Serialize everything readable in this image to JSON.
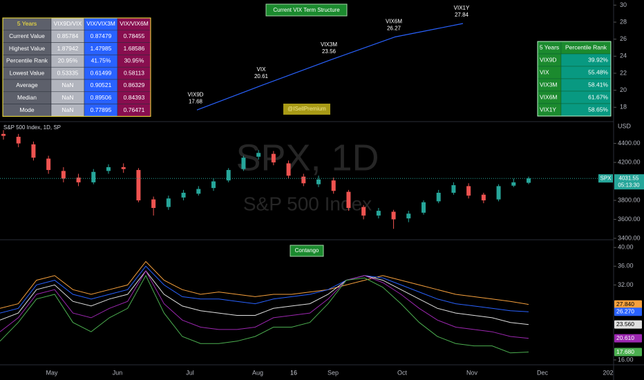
{
  "left_table": {
    "header": [
      "5 Years",
      "VIX9D/VIX",
      "VIX/VIX3M",
      "VIX/VIX6M"
    ],
    "rows": [
      [
        "Current Value",
        "0.85784",
        "0.87479",
        "0.78455"
      ],
      [
        "Highest Value",
        "1.87942",
        "1.47985",
        "1.68586"
      ],
      [
        "Percentile Rank",
        "20.95%",
        "41.75%",
        "30.95%"
      ],
      [
        "Lowest Value",
        "0.53335",
        "0.61499",
        "0.58113"
      ],
      [
        "Average",
        "NaN",
        "0.90521",
        "0.86329"
      ],
      [
        "Median",
        "NaN",
        "0.89506",
        "0.84393"
      ],
      [
        "Mode",
        "NaN",
        "0.77895",
        "0.76471"
      ]
    ]
  },
  "right_table": {
    "header": [
      "5 Years",
      "Percentile Rank"
    ],
    "rows": [
      [
        "VIX9D",
        "39.92%"
      ],
      [
        "VIX",
        "55.48%"
      ],
      [
        "VIX3M",
        "58.41%"
      ],
      [
        "VIX6M",
        "61.67%"
      ],
      [
        "VIX1Y",
        "58.65%"
      ]
    ]
  },
  "watermark_tag": "@ISellPremium",
  "time_axis": [
    "May",
    "Jun",
    "Jul",
    "Aug",
    "16",
    "Sep",
    "Oct",
    "Nov",
    "Dec",
    "202"
  ],
  "chart_data": [
    {
      "type": "line",
      "title": "Current VIX Term Structure",
      "categories": [
        "VIX9D",
        "VIX",
        "VIX3M",
        "VIX6M",
        "VIX1Y"
      ],
      "values": [
        17.68,
        20.61,
        23.56,
        26.27,
        27.84
      ],
      "color": "#2962ff",
      "ylim": [
        16.4,
        30.6
      ],
      "yticks": [
        18,
        20,
        22,
        24,
        26,
        28,
        30
      ]
    },
    {
      "type": "candlestick",
      "legend": "S&P 500 Index, 1D, SP",
      "watermark_symbol": "SPX, 1D",
      "watermark_name": "S&P 500 Index",
      "currency": "USD",
      "price_tag": "SPX",
      "countdown": "05:13:30",
      "up_color": "#26a69a",
      "down_color": "#ef5350",
      "ylim": [
        3385,
        4630
      ],
      "yticks": [
        {
          "value": 3400,
          "label": "3400.00"
        },
        {
          "value": 3600,
          "label": "3600.00"
        },
        {
          "value": 3800,
          "label": "3800.00"
        },
        {
          "value": 4200,
          "label": "4200.00"
        },
        {
          "value": 4400,
          "label": "4400.00"
        }
      ],
      "open": [
        4500,
        4470,
        4390,
        4240,
        4110,
        4040,
        3990,
        4110,
        4150,
        4120,
        3810,
        3730,
        3830,
        3870,
        3930,
        4010,
        4130,
        4260,
        4290,
        4190,
        4050,
        3970,
        4010,
        3890,
        3730,
        3640,
        3680,
        3610,
        3670,
        3790,
        3880,
        3950,
        3860,
        3810,
        3955,
        3985
      ],
      "high": [
        4540,
        4500,
        4420,
        4270,
        4150,
        4080,
        4130,
        4180,
        4190,
        4140,
        3840,
        3850,
        3910,
        3950,
        4030,
        4140,
        4270,
        4330,
        4320,
        4220,
        4080,
        4060,
        4040,
        3910,
        3750,
        3720,
        3700,
        3690,
        3800,
        3910,
        3990,
        3980,
        3880,
        3970,
        4030,
        4050
      ],
      "low": [
        4440,
        4360,
        4220,
        4080,
        3990,
        3950,
        3970,
        4080,
        4090,
        3780,
        3640,
        3700,
        3800,
        3850,
        3900,
        3990,
        4110,
        4230,
        4170,
        4030,
        3950,
        3940,
        3870,
        3690,
        3600,
        3610,
        3500,
        3570,
        3650,
        3770,
        3860,
        3820,
        3770,
        3790,
        3940,
        3970
      ],
      "close": [
        4480,
        4400,
        4250,
        4120,
        4030,
        3990,
        4100,
        4150,
        4130,
        3800,
        3720,
        3820,
        3880,
        3920,
        4000,
        4120,
        4250,
        4300,
        4200,
        4060,
        3980,
        4020,
        3900,
        3720,
        3640,
        3690,
        3600,
        3660,
        3780,
        3880,
        3960,
        3850,
        3800,
        3950,
        3990,
        4031.55
      ]
    },
    {
      "type": "line",
      "title": "Contango",
      "ylim": [
        15.4,
        41.5
      ],
      "yticks": [
        {
          "value": 16,
          "label": "16.00"
        },
        {
          "value": 32,
          "label": "32.00"
        },
        {
          "value": 36,
          "label": "36.00"
        },
        {
          "value": 40,
          "label": "40.00"
        }
      ],
      "series": [
        {
          "color": "#f7a13d",
          "label_text": "#000",
          "last_label": "27.840",
          "values": [
            27,
            28,
            33,
            34,
            31,
            30,
            31,
            32,
            37,
            33,
            31,
            30,
            30.5,
            30,
            29.5,
            30,
            30,
            30.5,
            31,
            32,
            33,
            34,
            33,
            32,
            31,
            30,
            29.5,
            29,
            28.5,
            27.84
          ]
        },
        {
          "color": "#2962ff",
          "label_text": "#fff",
          "last_label": "26.270",
          "values": [
            26,
            27,
            32,
            33,
            30,
            29,
            30,
            31,
            36,
            32,
            29.5,
            29,
            29,
            28.5,
            28,
            29,
            29.5,
            30,
            31,
            33,
            34,
            33.5,
            32,
            30.5,
            29,
            28,
            27.5,
            27,
            26.5,
            26.27
          ]
        },
        {
          "color": "#e0e0e0",
          "label_text": "#000",
          "last_label": "23.560",
          "values": [
            24.5,
            26,
            31,
            32,
            28.5,
            27.5,
            29,
            30,
            35,
            30,
            27.5,
            26.5,
            26,
            25.5,
            25.5,
            27,
            27.5,
            28,
            30,
            33,
            34,
            33,
            31,
            29,
            27,
            26,
            25.5,
            25,
            24,
            23.56
          ]
        },
        {
          "color": "#9c27b0",
          "label_text": "#fff",
          "last_label": "20.610",
          "values": [
            22,
            25,
            30,
            31,
            26,
            25,
            27,
            28.5,
            35,
            28,
            24.5,
            23,
            22.5,
            22.5,
            23,
            25,
            25.5,
            26,
            29,
            33,
            34,
            32.5,
            30,
            27,
            24.5,
            23,
            22.5,
            22,
            21,
            20.61
          ]
        },
        {
          "color": "#4caf50",
          "label_text": "#fff",
          "last_label": "17.680",
          "values": [
            20,
            24,
            29,
            30,
            24,
            22,
            25,
            27,
            34,
            26,
            21,
            19.5,
            19.5,
            20,
            21,
            23,
            23,
            24,
            28,
            33,
            33.5,
            31.5,
            28,
            24,
            21,
            19.5,
            19,
            19,
            17.5,
            17.68
          ]
        }
      ]
    }
  ]
}
